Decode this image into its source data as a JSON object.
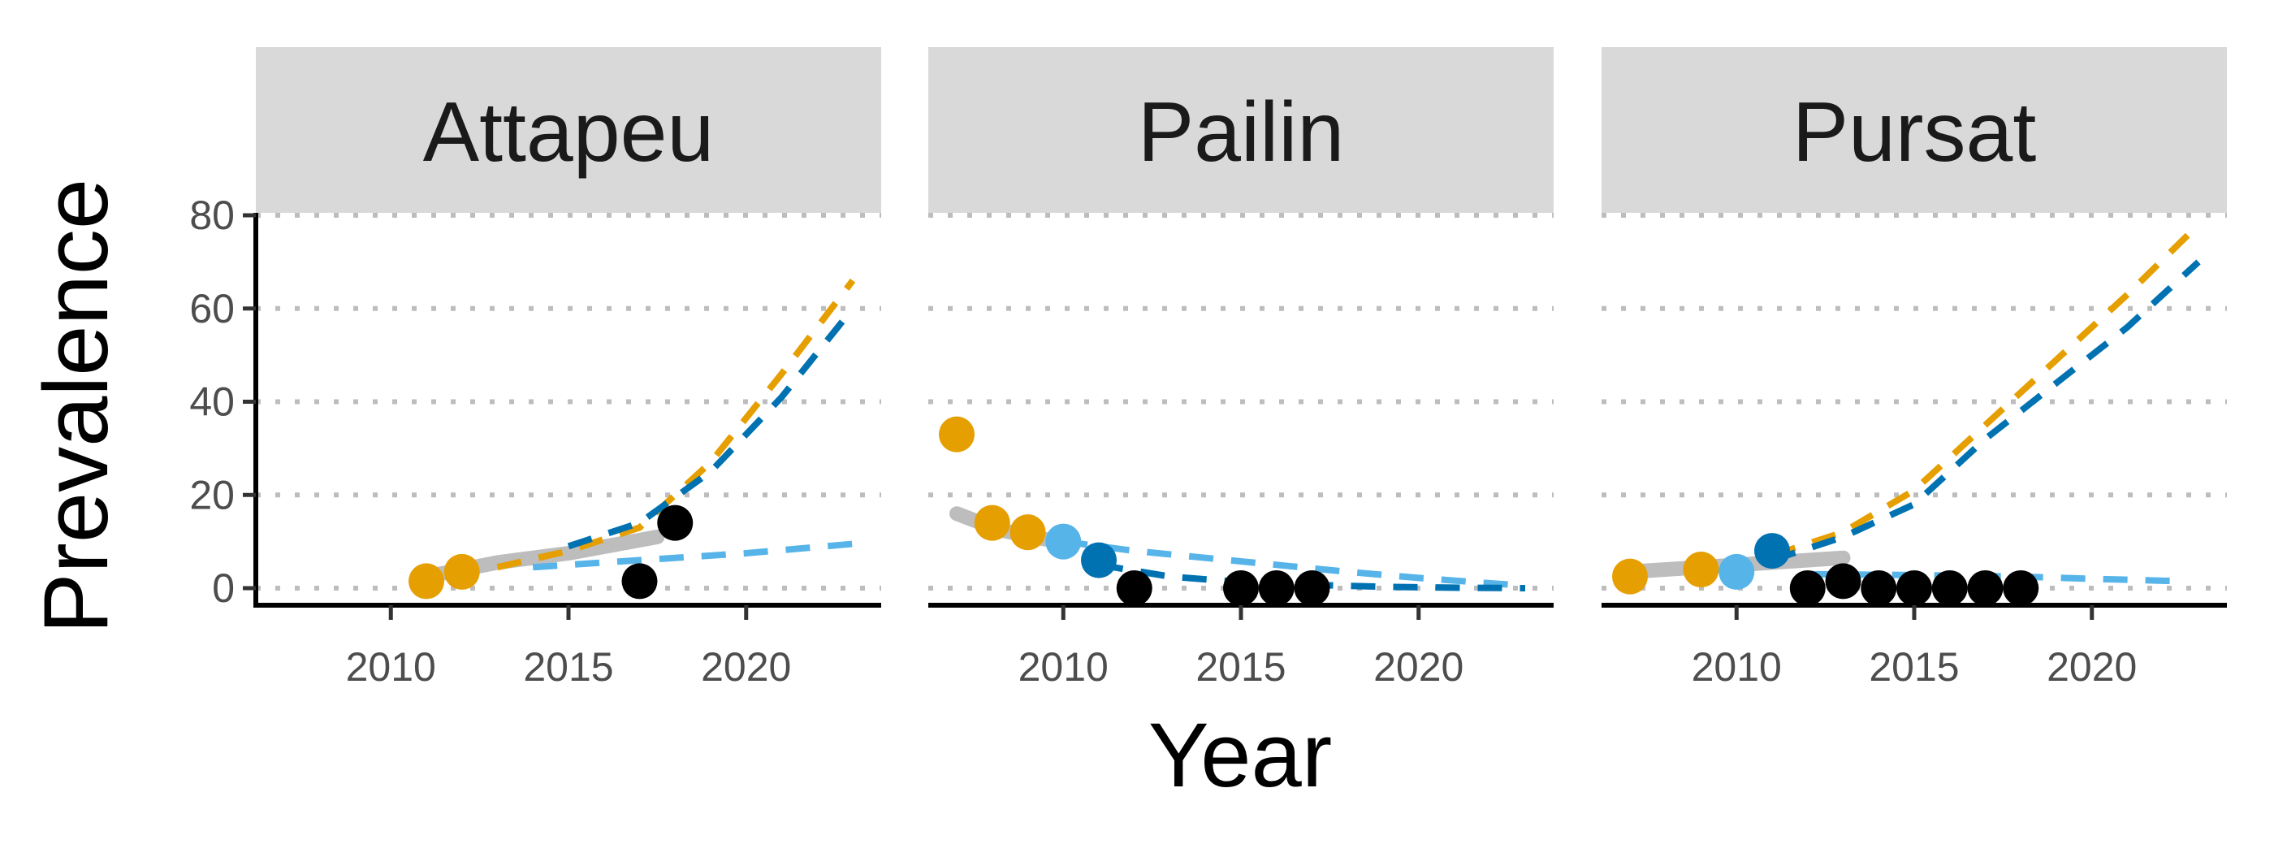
{
  "chart_data": {
    "type": "scatter",
    "xlabel": "Year",
    "ylabel": "Prevalence",
    "xlim": [
      2006.2,
      2023.8
    ],
    "ylim": [
      -4,
      80
    ],
    "x_ticks": [
      2010,
      2015,
      2020
    ],
    "y_ticks": [
      0,
      20,
      40,
      60,
      80
    ],
    "grid": "horizontal dotted",
    "colors": {
      "orange": "#E69F00",
      "light_blue": "#56B4E9",
      "dark_blue": "#0072B2",
      "black": "#000000",
      "grey": "#BDBDBD",
      "strip_bg": "#D9D9D9",
      "grid": "#BDBDBD"
    },
    "panels": [
      {
        "title": "Attapeu",
        "points": [
          {
            "x": 2011,
            "y": 1.5,
            "color": "orange"
          },
          {
            "x": 2012,
            "y": 3.5,
            "color": "orange"
          },
          {
            "x": 2017,
            "y": 1.5,
            "color": "black"
          },
          {
            "x": 2018,
            "y": 14,
            "color": "black"
          }
        ],
        "lines": [
          {
            "style": "solid",
            "color": "grey",
            "x": [
              2011,
              2013,
              2015,
              2017.5
            ],
            "y": [
              2.5,
              5.5,
              7.5,
              11
            ]
          },
          {
            "style": "dashed",
            "color": "orange",
            "x": [
              2013,
              2015,
              2017,
              2019,
              2021,
              2023
            ],
            "y": [
              4.5,
              8,
              13,
              27,
              46,
              66
            ]
          },
          {
            "style": "dashed",
            "color": "dark_blue",
            "x": [
              2015,
              2017,
              2019,
              2021,
              2023
            ],
            "y": [
              9,
              14,
              25,
              41,
              60
            ]
          },
          {
            "style": "dashed",
            "color": "light_blue",
            "x": [
              2014,
              2016,
              2018,
              2020,
              2023
            ],
            "y": [
              4.5,
              5.5,
              6.5,
              7.5,
              9.5
            ]
          }
        ]
      },
      {
        "title": "Pailin",
        "points": [
          {
            "x": 2007,
            "y": 33,
            "color": "orange"
          },
          {
            "x": 2008,
            "y": 14,
            "color": "orange"
          },
          {
            "x": 2009,
            "y": 12,
            "color": "orange"
          },
          {
            "x": 2010,
            "y": 10,
            "color": "light_blue"
          },
          {
            "x": 2011,
            "y": 6,
            "color": "dark_blue"
          },
          {
            "x": 2012,
            "y": 0,
            "color": "black"
          },
          {
            "x": 2015,
            "y": 0,
            "color": "black"
          },
          {
            "x": 2016,
            "y": 0,
            "color": "black"
          },
          {
            "x": 2017,
            "y": 0,
            "color": "black"
          }
        ],
        "lines": [
          {
            "style": "solid",
            "color": "grey",
            "x": [
              2007,
              2008.2,
              2009.5
            ],
            "y": [
              16,
              12.5,
              10.5
            ]
          },
          {
            "style": "dashed",
            "color": "light_blue",
            "x": [
              2010,
              2012,
              2014,
              2016,
              2018,
              2020,
              2023
            ],
            "y": [
              10,
              8,
              6.5,
              5,
              3.5,
              2.2,
              0.5
            ]
          },
          {
            "style": "dashed",
            "color": "dark_blue",
            "x": [
              2011,
              2013,
              2015,
              2017,
              2019,
              2021,
              2023
            ],
            "y": [
              5,
              2.5,
              1.3,
              0.7,
              0.3,
              0.1,
              0
            ]
          }
        ]
      },
      {
        "title": "Pursat",
        "points": [
          {
            "x": 2007,
            "y": 2.5,
            "color": "orange"
          },
          {
            "x": 2009,
            "y": 4,
            "color": "orange"
          },
          {
            "x": 2010,
            "y": 3.5,
            "color": "light_blue"
          },
          {
            "x": 2011,
            "y": 8,
            "color": "dark_blue"
          },
          {
            "x": 2012,
            "y": 0,
            "color": "black"
          },
          {
            "x": 2013,
            "y": 1.5,
            "color": "black"
          },
          {
            "x": 2014,
            "y": 0,
            "color": "black"
          },
          {
            "x": 2015,
            "y": 0,
            "color": "black"
          },
          {
            "x": 2016,
            "y": 0,
            "color": "black"
          },
          {
            "x": 2017,
            "y": 0,
            "color": "black"
          },
          {
            "x": 2018,
            "y": 0,
            "color": "black"
          }
        ],
        "lines": [
          {
            "style": "solid",
            "color": "grey",
            "x": [
              2007,
              2010,
              2013
            ],
            "y": [
              3.5,
              5,
              6.5
            ]
          },
          {
            "style": "dashed",
            "color": "orange",
            "x": [
              2011,
              2013,
              2015,
              2017,
              2019,
              2021,
              2023
            ],
            "y": [
              7,
              12,
              21,
              35,
              49,
              63,
              78
            ]
          },
          {
            "style": "dashed",
            "color": "dark_blue",
            "x": [
              2011,
              2013,
              2015,
              2017,
              2019,
              2021,
              2023
            ],
            "y": [
              6,
              11,
              18,
              32,
              44,
              56,
              70
            ]
          },
          {
            "style": "dashed",
            "color": "light_blue",
            "x": [
              2012,
              2015,
              2018,
              2020,
              2022.5
            ],
            "y": [
              3,
              2.8,
              2.5,
              2,
              1.5
            ]
          }
        ]
      }
    ]
  }
}
